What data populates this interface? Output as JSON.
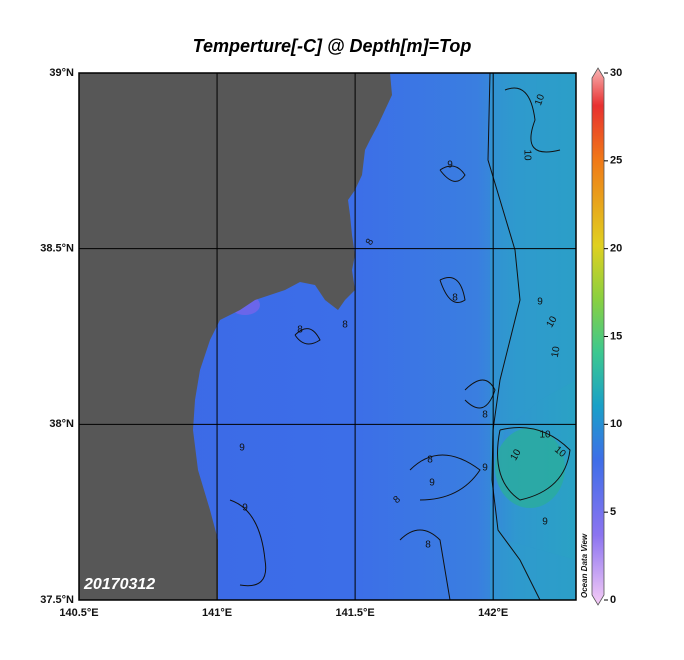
{
  "map": {
    "title": "Temperture[-C] @ Depth[m]=Top",
    "xlim": [
      140.5,
      142.3
    ],
    "ylim": [
      37.5,
      39
    ],
    "xticks": [
      {
        "value": 140.5,
        "label": "140.5°E"
      },
      {
        "value": 141,
        "label": "141°E"
      },
      {
        "value": 141.5,
        "label": "141.5°E"
      },
      {
        "value": 142,
        "label": "142°E"
      }
    ],
    "yticks": [
      {
        "value": 37.5,
        "label": "37.5°N"
      },
      {
        "value": 38,
        "label": "38°N"
      },
      {
        "value": 38.5,
        "label": "38.5°N"
      },
      {
        "value": 39,
        "label": "39°N"
      }
    ],
    "colorbar": {
      "range": [
        0,
        30
      ],
      "ticks": [
        0,
        5,
        10,
        15,
        20,
        25,
        30
      ]
    },
    "contour_labels": [
      10,
      9,
      10,
      8,
      8,
      9,
      10,
      10,
      8,
      8,
      8,
      10,
      10,
      10,
      9,
      8,
      9,
      9,
      8,
      9,
      9,
      8
    ],
    "date": "20170312",
    "watermark": "Ocean Data View"
  }
}
